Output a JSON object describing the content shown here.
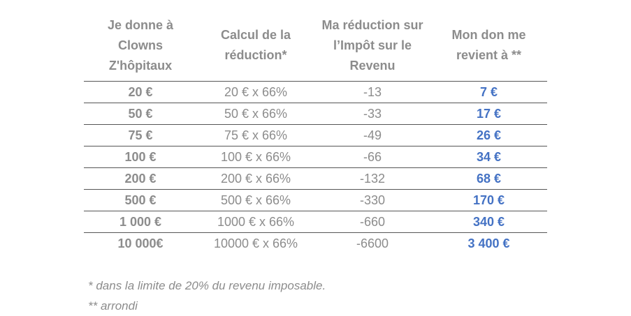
{
  "table": {
    "headers": [
      "Je donne à\nClowns\nZ'hôpitaux",
      "Calcul de la\nréduction*",
      "Ma réduction sur\nl’Impôt sur le\nRevenu",
      "Mon don me\nrevient à **"
    ],
    "rows": [
      {
        "don": "20 €",
        "calcul": "20 € x 66%",
        "reduction": "-13",
        "revient": "7 €"
      },
      {
        "don": "50 €",
        "calcul": "50 € x 66%",
        "reduction": "-33",
        "revient": "17 €"
      },
      {
        "don": "75 €",
        "calcul": "75 € x 66%",
        "reduction": "-49",
        "revient": "26 €"
      },
      {
        "don": "100 €",
        "calcul": "100 € x 66%",
        "reduction": "-66",
        "revient": "34 €"
      },
      {
        "don": "200 €",
        "calcul": "200 € x 66%",
        "reduction": "-132",
        "revient": "68 €"
      },
      {
        "don": "500 €",
        "calcul": "500 € x 66%",
        "reduction": "-330",
        "revient": "170 €"
      },
      {
        "don": "1 000 €",
        "calcul": "1000 € x 66%",
        "reduction": "-660",
        "revient": "340 €"
      },
      {
        "don": "10 000€",
        "calcul": "10000 € x 66%",
        "reduction": "-6600",
        "revient": "3 400 €"
      }
    ]
  },
  "footnotes": [
    "* dans la limite de 20% du revenu imposable.",
    "** arrondi"
  ],
  "colors": {
    "text_gray": "#8c8c8c",
    "accent_blue": "#4472c4",
    "rule": "#555555"
  }
}
